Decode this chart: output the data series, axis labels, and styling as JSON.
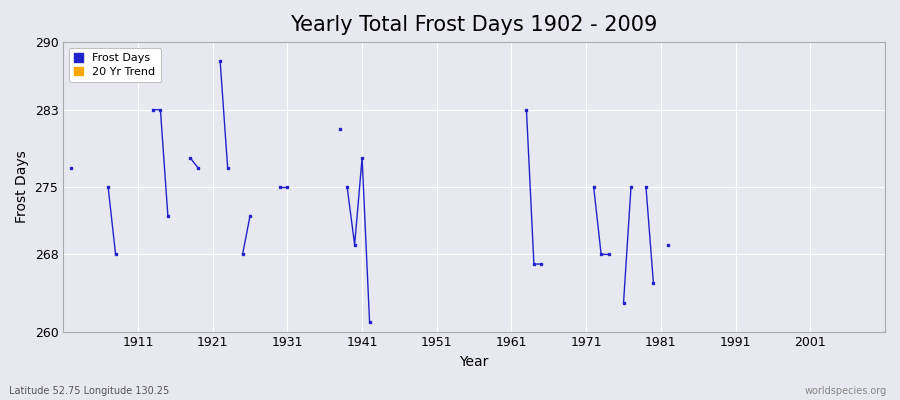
{
  "title": "Yearly Total Frost Days 1902 - 2009",
  "xlabel": "Year",
  "ylabel": "Frost Days",
  "xlim": [
    1901,
    2011
  ],
  "ylim": [
    260,
    290
  ],
  "xticks": [
    1911,
    1921,
    1931,
    1941,
    1951,
    1961,
    1971,
    1981,
    1991,
    2001
  ],
  "yticks": [
    260,
    268,
    275,
    283,
    290
  ],
  "frost_days_color": "#2222cc",
  "trend_color": "#ffa500",
  "bg_color": "#e8e8f0",
  "grid_color": "#ffffff",
  "segments": [
    {
      "x": [
        1902
      ],
      "y": [
        277
      ]
    },
    {
      "x": [
        1907,
        1908
      ],
      "y": [
        275,
        268
      ]
    },
    {
      "x": [
        1913,
        1914,
        1915
      ],
      "y": [
        283,
        283,
        272
      ]
    },
    {
      "x": [
        1918,
        1919
      ],
      "y": [
        278,
        277
      ]
    },
    {
      "x": [
        1922,
        1923
      ],
      "y": [
        288,
        277
      ]
    },
    {
      "x": [
        1925,
        1926
      ],
      "y": [
        268,
        272
      ]
    },
    {
      "x": [
        1930,
        1931
      ],
      "y": [
        275,
        275
      ]
    },
    {
      "x": [
        1938
      ],
      "y": [
        281
      ]
    },
    {
      "x": [
        1939,
        1940,
        1941,
        1942
      ],
      "y": [
        275,
        269,
        278,
        261
      ]
    },
    {
      "x": [
        1963,
        1964,
        1965
      ],
      "y": [
        283,
        267,
        267
      ]
    },
    {
      "x": [
        1972,
        1973,
        1974
      ],
      "y": [
        275,
        268,
        268
      ]
    },
    {
      "x": [
        1976,
        1977
      ],
      "y": [
        263,
        275
      ]
    },
    {
      "x": [
        1979,
        1980
      ],
      "y": [
        275,
        265
      ]
    },
    {
      "x": [
        1982
      ],
      "y": [
        269
      ]
    }
  ],
  "title_fontsize": 15,
  "label_fontsize": 10,
  "tick_fontsize": 9,
  "watermark": "worldspecies.org",
  "bottom_left": "Latitude 52.75 Longitude 130.25"
}
